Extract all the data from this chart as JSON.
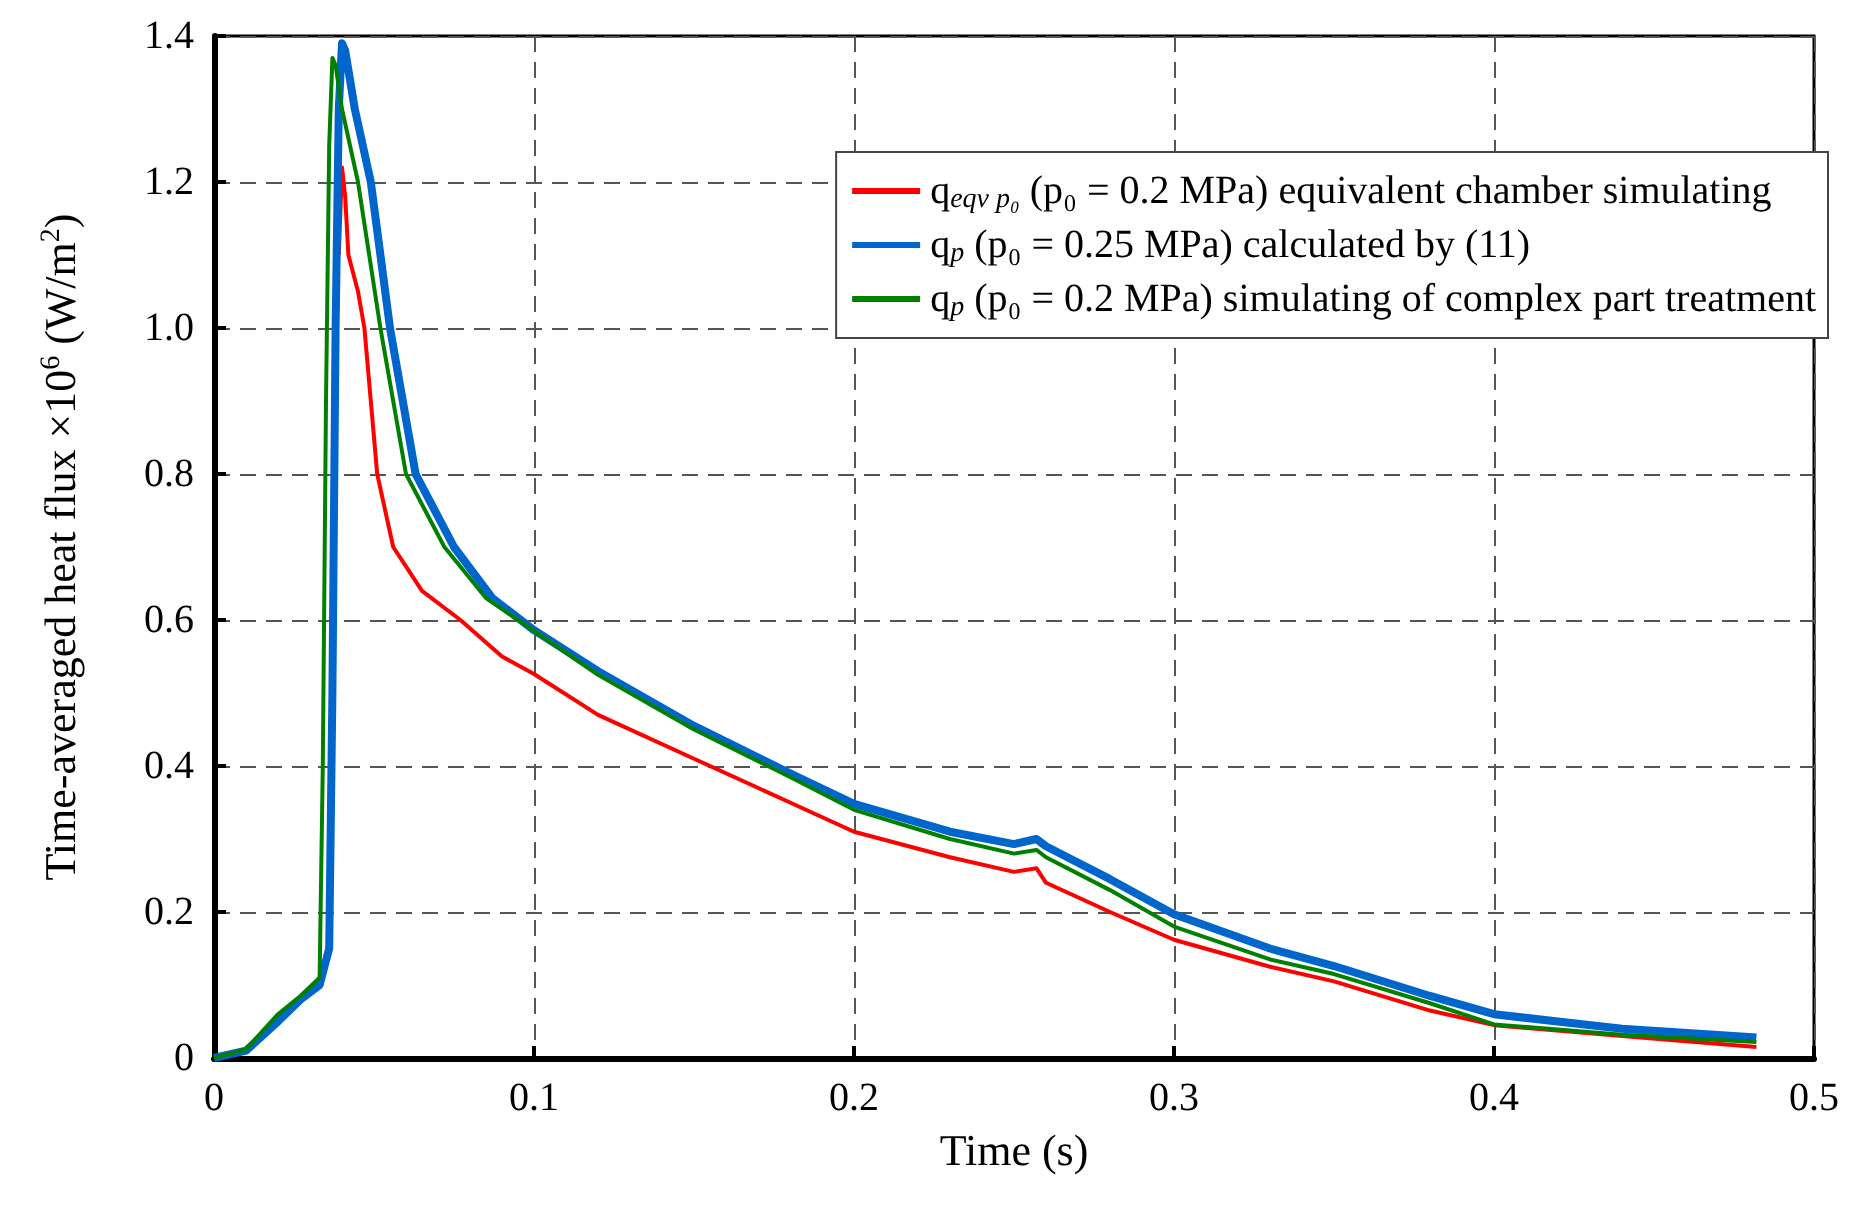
{
  "chart_data": {
    "type": "line",
    "xlabel": "Time (s)",
    "ylabel": "Time-averaged heat flux ×10$^{6}$ (W/m$^{2}$)",
    "xlim": [
      0,
      0.5
    ],
    "xticks": [
      0,
      0.1,
      0.2,
      0.3,
      0.4,
      0.5
    ],
    "ylim": [
      0,
      1.4
    ],
    "yticks": [
      0,
      0.2,
      0.4,
      0.6,
      0.8,
      {
        "value": 1,
        "label": "1.0"
      },
      1.2,
      1.4
    ],
    "grid": true,
    "legend": "top right",
    "marker": "none",
    "line_style": "solid",
    "series": [
      {
        "name": "q$_{eqv p₀}$ (p₀ = 0.2 MPa) equivalent chamber simulating",
        "color": "#ff0000",
        "x": [
          0.039,
          0.04,
          0.041,
          0.042,
          0.045,
          0.047,
          0.051,
          0.056,
          0.065,
          0.077,
          0.09,
          0.1,
          0.12,
          0.15,
          0.18,
          0.2,
          0.23,
          0.25,
          0.257,
          0.26,
          0.28,
          0.3,
          0.33,
          0.35,
          0.38,
          0.4,
          0.44,
          0.482
        ],
        "values": [
          1.1,
          1.22,
          1.18,
          1.1,
          1.05,
          1.0,
          0.8,
          0.7,
          0.64,
          0.6,
          0.55,
          0.526,
          0.47,
          0.41,
          0.35,
          0.31,
          0.275,
          0.255,
          0.26,
          0.24,
          0.2,
          0.162,
          0.125,
          0.105,
          0.065,
          0.045,
          0.03,
          0.015
        ]
      },
      {
        "name": "q$_{p}$ (p₀ = 0.25 MPa) calculated by (11)",
        "color": "#0066cc",
        "x": [
          0,
          0.01,
          0.02,
          0.027,
          0.033,
          0.036,
          0.037,
          0.038,
          0.039,
          0.04,
          0.041,
          0.044,
          0.049,
          0.055,
          0.063,
          0.075,
          0.087,
          0.1,
          0.12,
          0.15,
          0.18,
          0.2,
          0.23,
          0.25,
          0.257,
          0.26,
          0.28,
          0.3,
          0.33,
          0.35,
          0.38,
          0.4,
          0.44,
          0.482
        ],
        "values": [
          0,
          0.01,
          0.05,
          0.08,
          0.1,
          0.15,
          0.5,
          1.0,
          1.3,
          1.39,
          1.38,
          1.3,
          1.2,
          1.0,
          0.8,
          0.7,
          0.63,
          0.586,
          0.53,
          0.455,
          0.39,
          0.348,
          0.31,
          0.293,
          0.3,
          0.29,
          0.245,
          0.197,
          0.15,
          0.126,
          0.085,
          0.06,
          0.04,
          0.028
        ]
      },
      {
        "name": "q$_{p}$ (p₀ = 0.2 MPa) simulating of complex part treatment",
        "color": "#008000",
        "x": [
          0,
          0.01,
          0.02,
          0.027,
          0.033,
          0.034,
          0.035,
          0.036,
          0.037,
          0.038,
          0.04,
          0.045,
          0.052,
          0.06,
          0.072,
          0.085,
          0.1,
          0.12,
          0.15,
          0.18,
          0.2,
          0.23,
          0.25,
          0.257,
          0.26,
          0.28,
          0.3,
          0.33,
          0.35,
          0.38,
          0.4,
          0.44,
          0.482
        ],
        "values": [
          0,
          0.012,
          0.06,
          0.085,
          0.11,
          0.4,
          0.9,
          1.25,
          1.37,
          1.36,
          1.3,
          1.2,
          1.0,
          0.8,
          0.7,
          0.63,
          0.585,
          0.525,
          0.45,
          0.385,
          0.34,
          0.3,
          0.28,
          0.285,
          0.275,
          0.23,
          0.18,
          0.135,
          0.115,
          0.075,
          0.046,
          0.032,
          0.022
        ]
      }
    ]
  }
}
